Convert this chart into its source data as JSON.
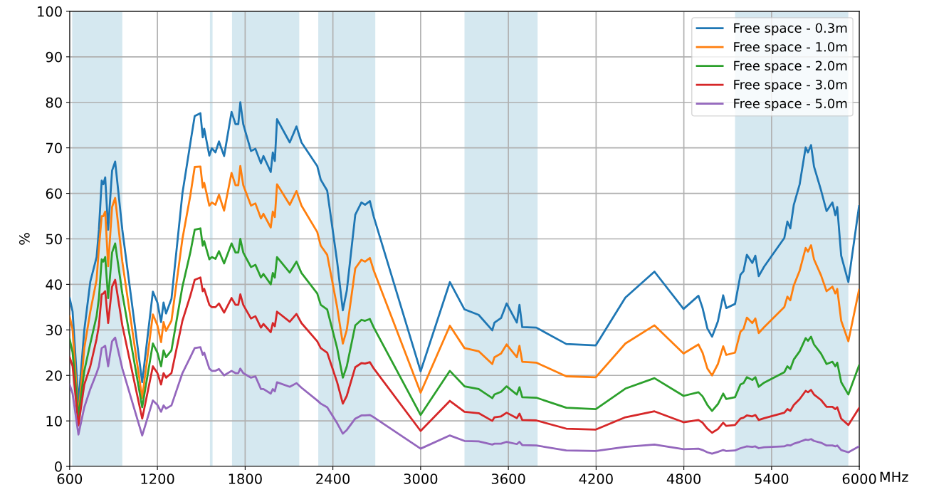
{
  "chart_data": {
    "type": "line",
    "ylabel": "%",
    "x": [
      600,
      620,
      660,
      700,
      741,
      784,
      800,
      819,
      830,
      843,
      863,
      890,
      911,
      960,
      1096,
      1169,
      1200,
      1225,
      1242,
      1259,
      1296,
      1371,
      1425,
      1455,
      1494,
      1510,
      1520,
      1555,
      1572,
      1597,
      1621,
      1656,
      1707,
      1734,
      1753,
      1767,
      1787,
      1840,
      1870,
      1908,
      1925,
      1975,
      1989,
      2003,
      2018,
      2105,
      2151,
      2185,
      2293,
      2317,
      2361,
      2429,
      2468,
      2495,
      2553,
      2595,
      2620,
      2653,
      2680,
      3000,
      3200,
      3300,
      3397,
      3490,
      3505,
      3550,
      3588,
      3658,
      3676,
      3695,
      3791,
      3996,
      4198,
      4400,
      4599,
      4798,
      4900,
      4928,
      4961,
      4993,
      5033,
      5069,
      5090,
      5150,
      5187,
      5208,
      5231,
      5268,
      5289,
      5312,
      5349,
      5487,
      5508,
      5528,
      5552,
      5592,
      5633,
      5649,
      5670,
      5690,
      5738,
      5776,
      5816,
      5836,
      5849,
      5876,
      5925,
      5998
    ],
    "series": [
      {
        "name": "Free space - 0.3m",
        "color": "#1f77b4",
        "values": [
          37,
          34,
          14,
          30,
          40.6,
          46,
          52,
          62.8,
          62,
          63.5,
          52,
          65,
          67,
          52,
          18.5,
          38.4,
          36,
          31.7,
          36,
          33.6,
          36.8,
          60,
          71,
          77,
          77.6,
          72.3,
          74.2,
          68.3,
          69.9,
          69,
          71.4,
          68.2,
          77.9,
          75.2,
          75.2,
          80,
          75.2,
          69.3,
          69.8,
          66.6,
          68.2,
          64.7,
          69,
          67.1,
          76.3,
          71.2,
          74.7,
          71.2,
          66,
          63,
          60.6,
          45,
          34.3,
          38.6,
          55.3,
          58,
          57.5,
          58.3,
          54.8,
          20.9,
          40.5,
          34.5,
          33.3,
          29.9,
          31.6,
          32.6,
          35.8,
          31.6,
          35.5,
          30.6,
          30.5,
          26.9,
          26.6,
          37.1,
          42.8,
          34.6,
          37.5,
          34.8,
          30.3,
          28.5,
          31.9,
          37.6,
          34.8,
          35.7,
          42.1,
          42.9,
          46.5,
          44.7,
          46.3,
          41.8,
          43.9,
          50.2,
          53.8,
          52.3,
          57.5,
          62,
          70.1,
          69,
          70.6,
          65.9,
          60.7,
          56.1,
          58,
          55.2,
          57,
          46.3,
          40.5,
          57.2
        ]
      },
      {
        "name": "Free space - 1.0m",
        "color": "#ff7f0e",
        "values": [
          33,
          30,
          11,
          26,
          34,
          41,
          48,
          55,
          55,
          56,
          44,
          57,
          59,
          45,
          15,
          33.4,
          31,
          27.3,
          31.7,
          29.8,
          32,
          50,
          59.5,
          65.8,
          65.9,
          61.3,
          62.3,
          57.3,
          58,
          57.5,
          59.7,
          56.2,
          64.5,
          61.8,
          61.8,
          66,
          61.8,
          57.3,
          57.8,
          54.5,
          55.5,
          52.5,
          56,
          54.8,
          62,
          57.5,
          60.5,
          57.3,
          51.5,
          48.5,
          46.5,
          35,
          27,
          30,
          43.5,
          45.4,
          45,
          45.8,
          43,
          16.2,
          30.9,
          26,
          25.3,
          22.5,
          24,
          24.8,
          26.8,
          24,
          26.5,
          23,
          22.8,
          19.8,
          19.6,
          27,
          31,
          24.8,
          26.8,
          25,
          21.5,
          20,
          22.5,
          26.4,
          24.5,
          25,
          29.6,
          30.2,
          32.7,
          31.5,
          32.5,
          29.3,
          30.6,
          35,
          37.3,
          36.5,
          39.8,
          43,
          48,
          47.2,
          48.6,
          45.5,
          42,
          38.5,
          39.5,
          38,
          39,
          32,
          27.5,
          38.8
        ]
      },
      {
        "name": "Free space - 2.0m",
        "color": "#2ca02c",
        "values": [
          28,
          25,
          11,
          21,
          27,
          33,
          37,
          45.5,
          45,
          46,
          37,
          47,
          49,
          38,
          13,
          27,
          25,
          22,
          25.5,
          24,
          25.5,
          39.5,
          47,
          52,
          52.3,
          48.5,
          49.5,
          45.5,
          46,
          45.6,
          47.3,
          44.6,
          49,
          47,
          47,
          50,
          47,
          43.8,
          44.3,
          41.5,
          42.3,
          40,
          42.5,
          41.5,
          46,
          42.6,
          45,
          42.5,
          38,
          35.5,
          34.5,
          26,
          19.5,
          22,
          31,
          32.2,
          32,
          32.4,
          30.5,
          11.3,
          21,
          17.6,
          17,
          15,
          15.8,
          16.4,
          17.6,
          15.8,
          17.4,
          15.2,
          15.1,
          12.9,
          12.6,
          17.1,
          19.4,
          15.5,
          16.3,
          15.4,
          13.5,
          12.2,
          13.7,
          16,
          14.8,
          15.2,
          18,
          18.3,
          19.6,
          19,
          19.6,
          17.5,
          18.4,
          20.7,
          22,
          21.4,
          23.5,
          25.3,
          28.2,
          27.6,
          28.5,
          26.8,
          24.8,
          22.5,
          23,
          22,
          22.8,
          18.5,
          15.8,
          22.2
        ]
      },
      {
        "name": "Free space - 3.0m",
        "color": "#d62728",
        "values": [
          24,
          22,
          9,
          18,
          22,
          28,
          31,
          37.8,
          38,
          38.5,
          31.5,
          39.5,
          41,
          31,
          10.5,
          22,
          20.5,
          18,
          20.5,
          19.5,
          20.5,
          32,
          37.5,
          41,
          41.5,
          38.5,
          39,
          35.5,
          35,
          35,
          35.8,
          33.8,
          37,
          35.5,
          35.5,
          37.8,
          35.5,
          32.5,
          33,
          30.5,
          31.3,
          29.5,
          31.5,
          30.8,
          34,
          31.8,
          33.5,
          31.5,
          27.5,
          26,
          25,
          18.5,
          13.8,
          15.5,
          21.8,
          22.7,
          22.6,
          22.9,
          21.5,
          7.8,
          14.4,
          12,
          11.7,
          10,
          10.8,
          11,
          11.8,
          10.6,
          11.6,
          10.2,
          10.1,
          8.3,
          8.1,
          10.8,
          12.1,
          9.7,
          10.2,
          9.6,
          8.3,
          7.4,
          8.2,
          9.6,
          8.9,
          9.1,
          10.5,
          10.7,
          11.2,
          11,
          11.3,
          10.2,
          10.6,
          11.8,
          12.6,
          12.2,
          13.5,
          14.8,
          16.6,
          16.3,
          16.8,
          15.8,
          14.6,
          13.1,
          13.1,
          12.6,
          13,
          10.5,
          9.1,
          12.8
        ]
      },
      {
        "name": "Free space - 5.0m",
        "color": "#9467bd",
        "values": [
          18,
          16,
          7,
          13,
          17,
          20.5,
          22,
          26,
          26.2,
          26.5,
          22,
          27.5,
          28.3,
          21.5,
          6.8,
          14.5,
          13.5,
          12,
          13.4,
          12.7,
          13.4,
          20.5,
          24,
          26,
          26.2,
          24.5,
          25,
          21.5,
          21,
          21,
          21.4,
          20,
          21,
          20.5,
          20.5,
          21.5,
          20.5,
          19.5,
          19.8,
          17,
          17,
          16,
          17,
          16.5,
          18.5,
          17.5,
          18.3,
          17.3,
          14.5,
          13.8,
          13,
          9.5,
          7.2,
          8,
          10.5,
          11.2,
          11.2,
          11.3,
          10.8,
          3.9,
          6.8,
          5.6,
          5.5,
          4.8,
          5,
          5,
          5.4,
          4.9,
          5.4,
          4.7,
          4.6,
          3.5,
          3.4,
          4.3,
          4.8,
          3.8,
          3.9,
          3.6,
          3.1,
          2.8,
          3.2,
          3.6,
          3.4,
          3.5,
          4,
          4.2,
          4.4,
          4.3,
          4.4,
          4,
          4.2,
          4.4,
          4.7,
          4.6,
          5,
          5.4,
          5.9,
          5.8,
          6,
          5.6,
          5.2,
          4.6,
          4.6,
          4.4,
          4.6,
          3.6,
          3.1,
          4.4
        ]
      }
    ],
    "bands": [
      {
        "axis": "x",
        "from": 617,
        "to": 960,
        "color": "#d5e8f0"
      },
      {
        "axis": "x",
        "from": 1559,
        "to": 1577,
        "color": "#d5e8f0"
      },
      {
        "axis": "x",
        "from": 1710,
        "to": 2170,
        "color": "#d5e8f0"
      },
      {
        "axis": "x",
        "from": 2300,
        "to": 2690,
        "color": "#d5e8f0"
      },
      {
        "axis": "x",
        "from": 3300,
        "to": 3800,
        "color": "#d5e8f0"
      },
      {
        "axis": "x",
        "from": 5150,
        "to": 5925,
        "color": "#d5e8f0"
      }
    ],
    "xlim": [
      600,
      6000
    ],
    "xticks": [
      600,
      1200,
      1800,
      2400,
      3000,
      3600,
      4200,
      4800,
      5400,
      6000
    ],
    "xlabel": "MHz",
    "ylim": [
      0,
      100
    ],
    "yticks": [
      0,
      10,
      20,
      30,
      40,
      50,
      60,
      70,
      80,
      90,
      100
    ],
    "grid": true,
    "legend": "top right",
    "marker": "none",
    "line_style": "solid"
  }
}
